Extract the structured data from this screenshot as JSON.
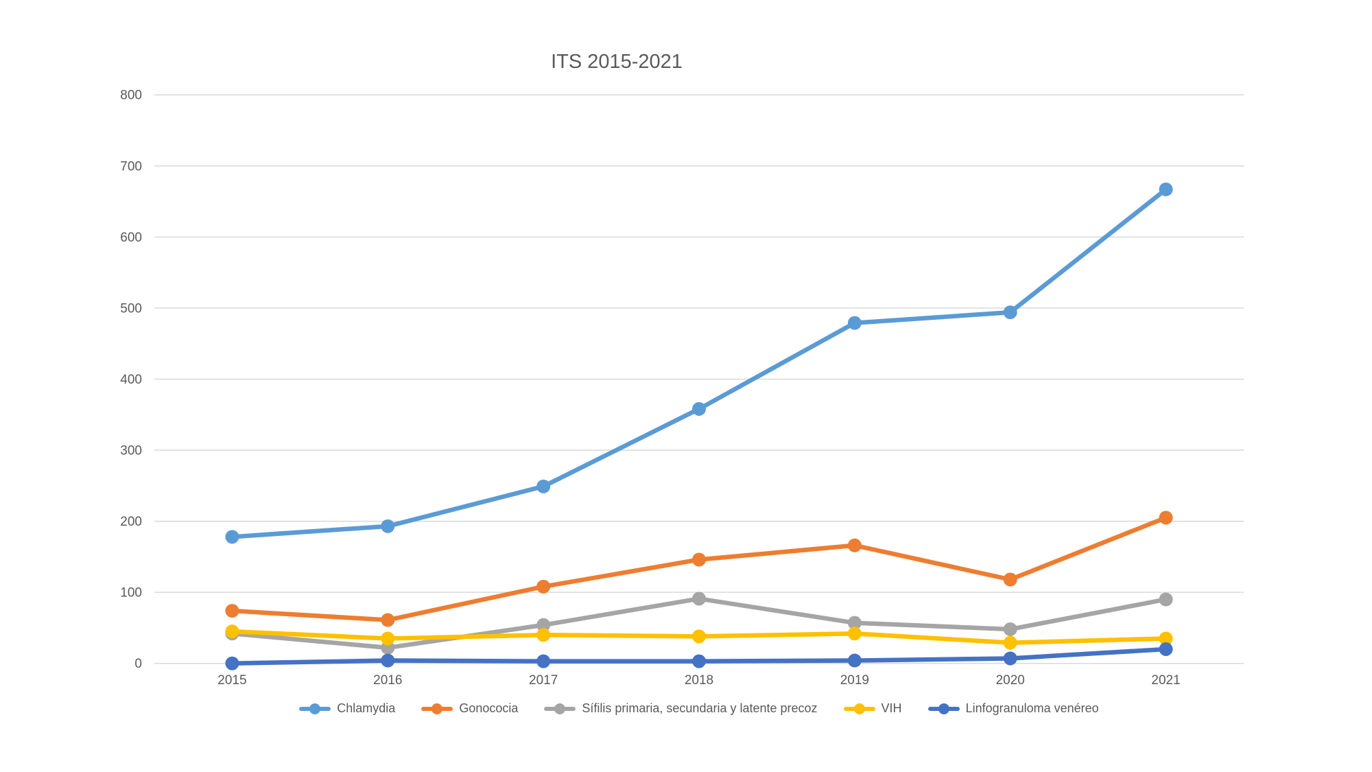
{
  "chart_data": {
    "type": "line",
    "title": "ITS 2015-2021",
    "categories": [
      "2015",
      "2016",
      "2017",
      "2018",
      "2019",
      "2020",
      "2021"
    ],
    "series": [
      {
        "name": "Chlamydia",
        "color": "#5B9BD5",
        "values": [
          178,
          193,
          249,
          358,
          479,
          494,
          667
        ]
      },
      {
        "name": "Gonococia",
        "color": "#ED7D31",
        "values": [
          74,
          61,
          108,
          146,
          166,
          118,
          205
        ]
      },
      {
        "name": "Sífilis primaria, secundaria y latente precoz",
        "color": "#A5A5A5",
        "values": [
          42,
          22,
          54,
          91,
          57,
          48,
          90
        ]
      },
      {
        "name": "VIH",
        "color": "#FFC000",
        "values": [
          45,
          35,
          40,
          38,
          42,
          29,
          35
        ]
      },
      {
        "name": "Linfogranuloma venéreo",
        "color": "#4472C4",
        "values": [
          0,
          4,
          3,
          3,
          4,
          7,
          20
        ]
      }
    ],
    "xlabel": "",
    "ylabel": "",
    "ylim": [
      0,
      800
    ],
    "y_ticks": [
      0,
      100,
      200,
      300,
      400,
      500,
      600,
      700,
      800
    ],
    "grid": true,
    "legend_position": "bottom",
    "colors": {
      "axis_text": "#595959",
      "title_text": "#595959",
      "gridline": "#D9D9D9",
      "background": "#FFFFFF"
    }
  }
}
